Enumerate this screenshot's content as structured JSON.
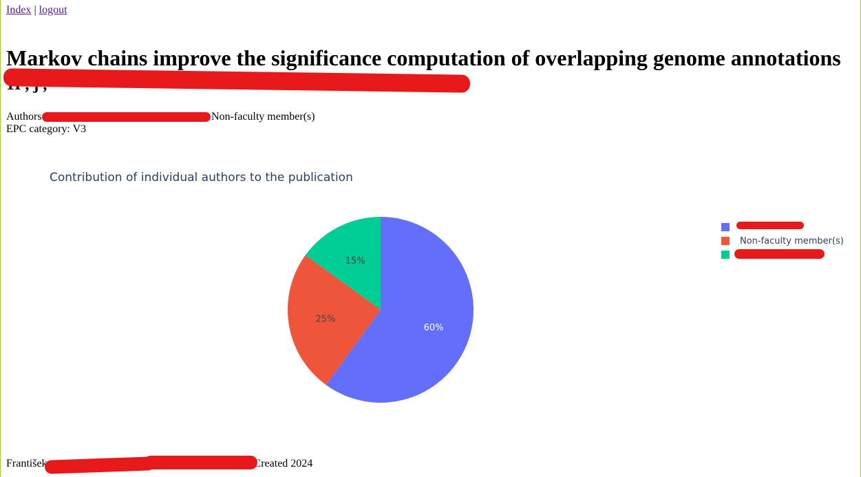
{
  "nav": {
    "index_label": "Index",
    "separator": "|",
    "logout_label": "logout"
  },
  "page": {
    "title": "Markov chains improve the significance computation of overlapping genome annotations",
    "subtitle_visible": "1I                    ,                        j      ,"
  },
  "meta": {
    "authors_prefix": "Authors:",
    "authors_suffix": "Non-faculty member(s)",
    "epc_category": "EPC category: V3"
  },
  "chart_data": {
    "type": "pie",
    "title": "Contribution of individual authors to the publication",
    "slices": [
      {
        "label": "",
        "value": 60,
        "text": "60%",
        "color": "#636efa"
      },
      {
        "label": "Non-faculty member(s)",
        "value": 25,
        "text": "25%",
        "color": "#ef553b"
      },
      {
        "label": "",
        "value": 15,
        "text": "15%",
        "color": "#00cc96"
      }
    ],
    "legend_position": "top-right"
  },
  "footer": {
    "author_first_name": "František",
    "created": "Created 2024"
  }
}
